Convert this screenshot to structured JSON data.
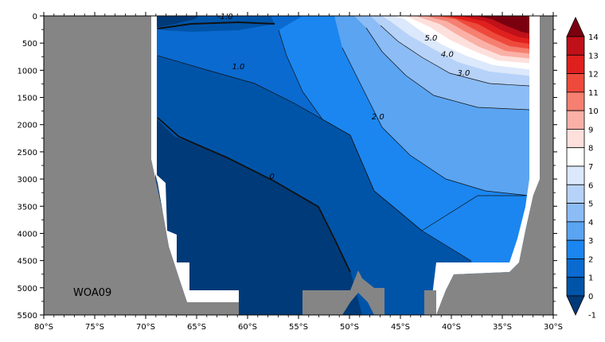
{
  "chart_data": {
    "type": "contour",
    "dataset_label": "WOA09",
    "x_axis": {
      "range": [
        -80,
        -30
      ],
      "tick_values": [
        -80,
        -75,
        -70,
        -65,
        -60,
        -55,
        -50,
        -45,
        -40,
        -35,
        -30
      ],
      "tick_labels": [
        "80°S",
        "75°S",
        "70°S",
        "65°S",
        "60°S",
        "55°S",
        "50°S",
        "45°S",
        "40°S",
        "35°S",
        "30°S"
      ]
    },
    "y_axis": {
      "range": [
        0,
        5500
      ],
      "inverted": true,
      "tick_values": [
        0,
        500,
        1000,
        1500,
        2000,
        2500,
        3000,
        3500,
        4000,
        4500,
        5000,
        5500
      ],
      "tick_labels": [
        "0",
        "500",
        "1000",
        "1500",
        "2000",
        "2500",
        "3000",
        "3500",
        "4000",
        "4500",
        "5000",
        "5500"
      ]
    },
    "colorbar": {
      "position": "right",
      "levels": [
        -1,
        0,
        1,
        2,
        3,
        4,
        5,
        6,
        7,
        8,
        9,
        10,
        11,
        12,
        13,
        14
      ],
      "labels": [
        "-1",
        "0",
        "1",
        "2",
        "3",
        "4",
        "5",
        "6",
        "7",
        "8",
        "9",
        "10",
        "11",
        "12",
        "13",
        "14"
      ],
      "colors": [
        "#003a78",
        "#0054a8",
        "#0a6ad0",
        "#1b86f0",
        "#5aa4f2",
        "#8cbcf5",
        "#b6d2f8",
        "#dce8fb",
        "#ffffff",
        "#fde0dc",
        "#fab0a6",
        "#f57f70",
        "#ee4a3c",
        "#e0201d",
        "#c0101a",
        "#7a0010"
      ]
    },
    "contour_labels": [
      {
        "text": "-1.0",
        "lon": -62.2,
        "depth": 60
      },
      {
        "text": "1.0",
        "lon": -60.9,
        "depth": 980
      },
      {
        "text": "0",
        "lon": -57.6,
        "depth": 3000
      },
      {
        "text": "2.0",
        "lon": -47.2,
        "depth": 1900
      },
      {
        "text": "3.0",
        "lon": -38.8,
        "depth": 1100
      },
      {
        "text": "4.0",
        "lon": -40.4,
        "depth": 750
      },
      {
        "text": "5.0",
        "lon": -42.0,
        "depth": 450
      }
    ]
  }
}
